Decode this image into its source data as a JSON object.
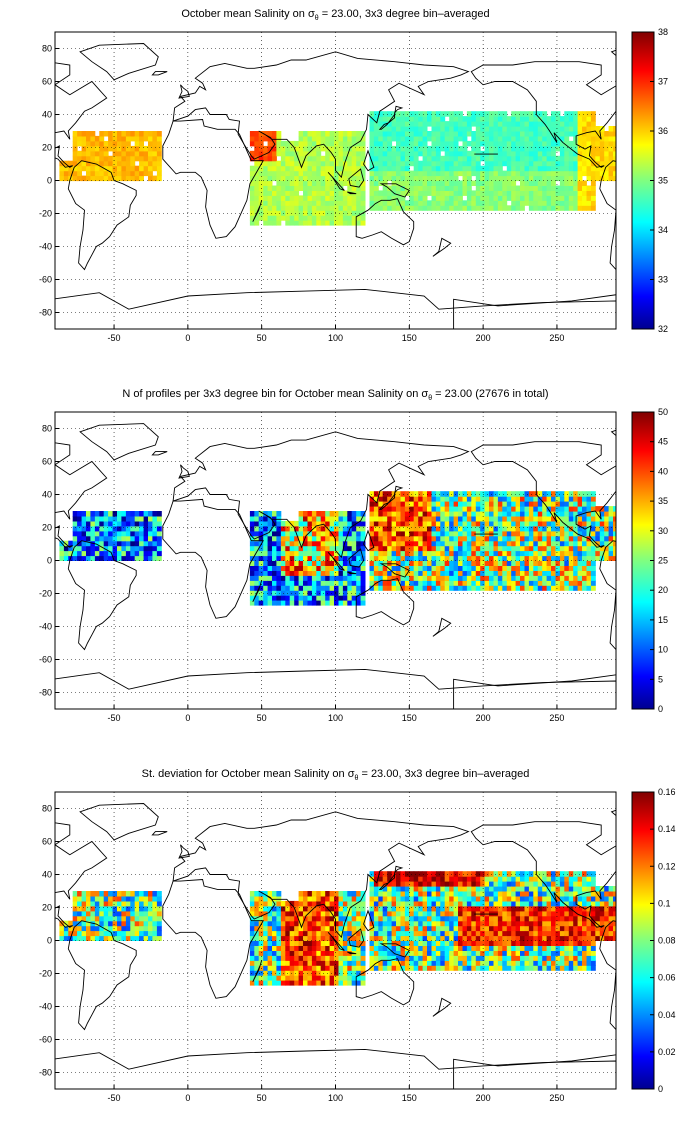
{
  "panels": [
    {
      "title_pre": "October mean Salinity on ",
      "title_sigma": "σ",
      "title_sub": "θ",
      "title_post": " = 23.00, 3x3 degree bin–averaged",
      "xticks": [
        "-50",
        "0",
        "50",
        "100",
        "150",
        "200",
        "250"
      ],
      "yticks": [
        "80",
        "60",
        "40",
        "20",
        "0",
        "-20",
        "-40",
        "-60",
        "-80"
      ],
      "colorbar_ticks": [
        "38",
        "37",
        "36",
        "35",
        "34",
        "33",
        "32"
      ],
      "colorbar_range": [
        32,
        38
      ]
    },
    {
      "title_pre": "N of profiles per 3x3 degree bin for October mean Salinity on ",
      "title_sigma": "σ",
      "title_sub": "θ",
      "title_post": " = 23.00 (27676 in total)",
      "xticks": [
        "-50",
        "0",
        "50",
        "100",
        "150",
        "200",
        "250"
      ],
      "yticks": [
        "80",
        "60",
        "40",
        "20",
        "0",
        "-20",
        "-40",
        "-60",
        "-80"
      ],
      "colorbar_ticks": [
        "50",
        "45",
        "40",
        "35",
        "30",
        "25",
        "20",
        "15",
        "10",
        "5",
        "0"
      ],
      "colorbar_range": [
        0,
        50
      ]
    },
    {
      "title_pre": "St. deviation for October mean Salinity on ",
      "title_sigma": "σ",
      "title_sub": "θ",
      "title_post": " = 23.00, 3x3 degree bin–averaged",
      "xticks": [
        "-50",
        "0",
        "50",
        "100",
        "150",
        "200",
        "250"
      ],
      "yticks": [
        "80",
        "60",
        "40",
        "20",
        "0",
        "-20",
        "-40",
        "-60",
        "-80"
      ],
      "colorbar_ticks": [
        "0.16",
        "0.14",
        "0.12",
        "0.1",
        "0.08",
        "0.06",
        "0.04",
        "0.02",
        "0"
      ],
      "colorbar_range": [
        0,
        0.16
      ]
    }
  ],
  "map": {
    "lon_range": [
      -90,
      290
    ],
    "lat_range": [
      -90,
      90
    ],
    "colormap": "jet",
    "grid": "dotted"
  }
}
